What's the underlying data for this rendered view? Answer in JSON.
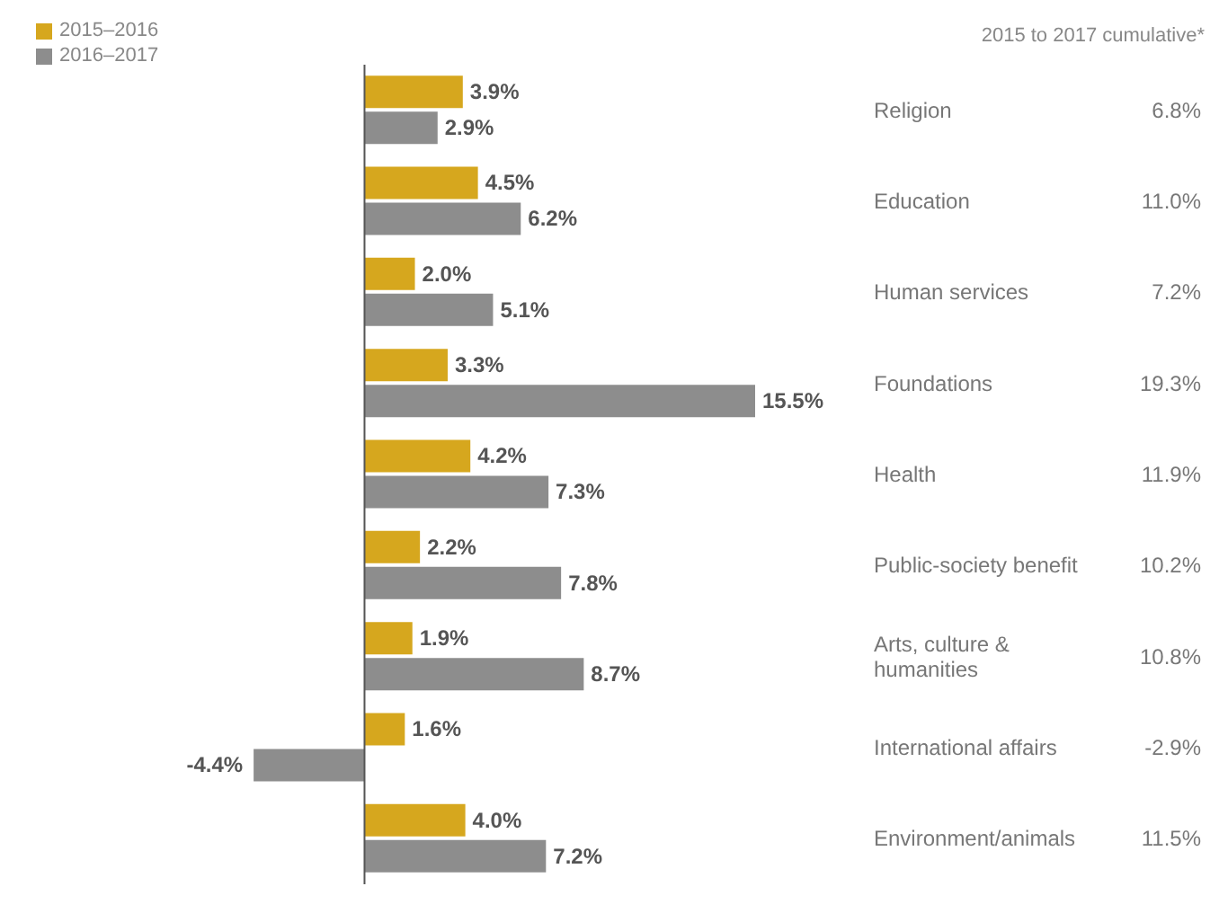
{
  "chart_data": {
    "type": "bar",
    "orientation": "horizontal",
    "categories": [
      "Religion",
      "Education",
      "Human services",
      "Foundations",
      "Health",
      "Public-society benefit",
      "Arts, culture & humanities",
      "International affairs",
      "Environment/animals"
    ],
    "series": [
      {
        "name": "2015–2016",
        "color": "#d6a71e",
        "values": [
          3.9,
          4.5,
          2.0,
          3.3,
          4.2,
          2.2,
          1.9,
          1.6,
          4.0
        ],
        "value_labels": [
          "3.9%",
          "4.5%",
          "2.0%",
          "3.3%",
          "4.2%",
          "2.2%",
          "1.9%",
          "1.6%",
          "4.0%"
        ]
      },
      {
        "name": "2016–2017",
        "color": "#8d8d8d",
        "values": [
          2.9,
          6.2,
          5.1,
          15.5,
          7.3,
          7.8,
          8.7,
          -4.4,
          7.2
        ],
        "value_labels": [
          "2.9%",
          "6.2%",
          "5.1%",
          "15.5%",
          "7.3%",
          "7.8%",
          "8.7%",
          "-4.4%",
          "7.2%"
        ]
      }
    ],
    "legend": "top left",
    "annotations": [
      "2015 to 2017 cumulative*",
      "6.8%",
      "11.0%",
      "7.2%",
      "19.3%",
      "11.9%",
      "10.2%",
      "10.8%",
      "-2.9%",
      "11.5%"
    ]
  }
}
